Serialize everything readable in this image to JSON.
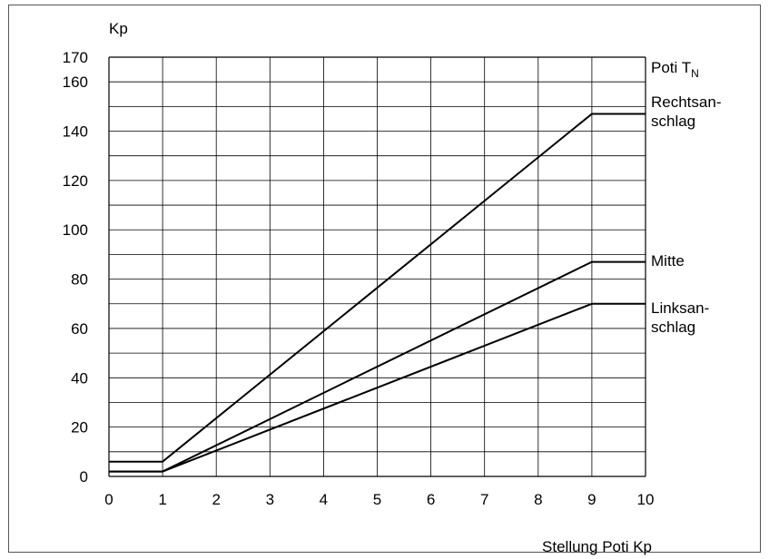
{
  "chart_data": {
    "type": "line",
    "xlabel": "Stellung Poti Kp",
    "ylabel": "Kp",
    "legend_title": {
      "main": "Poti T",
      "sub": "N"
    },
    "xlim": [
      0,
      10
    ],
    "ylim": [
      0,
      170
    ],
    "x_ticks": [
      "0",
      "1",
      "2",
      "3",
      "4",
      "5",
      "6",
      "7",
      "8",
      "9",
      "10"
    ],
    "y_ticks": [
      "0",
      "20",
      "40",
      "60",
      "80",
      "100",
      "120",
      "140",
      "160",
      "170"
    ],
    "grid": true,
    "series": [
      {
        "label_lines": [
          "Rechtsan-",
          "schlag"
        ],
        "x": [
          0,
          1,
          9,
          10
        ],
        "y": [
          6,
          6,
          147,
          147
        ]
      },
      {
        "label_lines": [
          "Mitte"
        ],
        "x": [
          0,
          1,
          9,
          10
        ],
        "y": [
          2,
          2,
          87,
          87
        ]
      },
      {
        "label_lines": [
          "Linksan-",
          "schlag"
        ],
        "x": [
          0,
          1,
          9,
          10
        ],
        "y": [
          2,
          2,
          70,
          70
        ]
      }
    ]
  }
}
